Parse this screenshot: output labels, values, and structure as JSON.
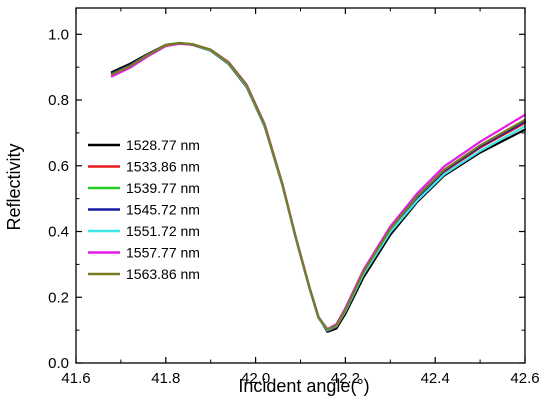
{
  "chart_data": {
    "type": "line",
    "title": "",
    "xlabel": "Incident angle(°)",
    "ylabel": "Reflectivity",
    "xlim": [
      41.6,
      42.6
    ],
    "ylim": [
      0.0,
      1.08
    ],
    "xticks": [
      "41.6",
      "41.8",
      "42.0",
      "42.2",
      "42.4",
      "42.6"
    ],
    "yticks": [
      "0.0",
      "0.2",
      "0.4",
      "0.6",
      "0.8",
      "1.0"
    ],
    "grid": false,
    "legend_position": "lower-left",
    "series": [
      {
        "name": "1528.77 nm",
        "color": "#000000",
        "points": [
          [
            41.68,
            0.885
          ],
          [
            41.72,
            0.91
          ],
          [
            41.76,
            0.94
          ],
          [
            41.8,
            0.968
          ],
          [
            41.83,
            0.972
          ],
          [
            41.86,
            0.968
          ],
          [
            41.9,
            0.95
          ],
          [
            41.94,
            0.91
          ],
          [
            41.98,
            0.84
          ],
          [
            42.02,
            0.72
          ],
          [
            42.06,
            0.54
          ],
          [
            42.09,
            0.38
          ],
          [
            42.12,
            0.23
          ],
          [
            42.14,
            0.14
          ],
          [
            42.16,
            0.095
          ],
          [
            42.18,
            0.105
          ],
          [
            42.2,
            0.15
          ],
          [
            42.24,
            0.26
          ],
          [
            42.3,
            0.39
          ],
          [
            42.36,
            0.49
          ],
          [
            42.42,
            0.57
          ],
          [
            42.5,
            0.64
          ],
          [
            42.6,
            0.71
          ]
        ]
      },
      {
        "name": "1533.86 nm",
        "color": "#e8191c",
        "points": [
          [
            41.68,
            0.88
          ],
          [
            41.72,
            0.905
          ],
          [
            41.76,
            0.938
          ],
          [
            41.8,
            0.968
          ],
          [
            41.83,
            0.973
          ],
          [
            41.86,
            0.969
          ],
          [
            41.9,
            0.952
          ],
          [
            41.94,
            0.912
          ],
          [
            41.98,
            0.842
          ],
          [
            42.02,
            0.722
          ],
          [
            42.06,
            0.54
          ],
          [
            42.09,
            0.378
          ],
          [
            42.12,
            0.228
          ],
          [
            42.14,
            0.138
          ],
          [
            42.16,
            0.098
          ],
          [
            42.18,
            0.11
          ],
          [
            42.2,
            0.158
          ],
          [
            42.24,
            0.272
          ],
          [
            42.3,
            0.402
          ],
          [
            42.36,
            0.5
          ],
          [
            42.42,
            0.582
          ],
          [
            42.5,
            0.655
          ],
          [
            42.6,
            0.73
          ]
        ]
      },
      {
        "name": "1539.77 nm",
        "color": "#22cc22",
        "points": [
          [
            41.68,
            0.88
          ],
          [
            41.72,
            0.905
          ],
          [
            41.76,
            0.938
          ],
          [
            41.8,
            0.968
          ],
          [
            41.83,
            0.974
          ],
          [
            41.86,
            0.97
          ],
          [
            41.9,
            0.953
          ],
          [
            41.94,
            0.914
          ],
          [
            41.98,
            0.844
          ],
          [
            42.02,
            0.724
          ],
          [
            42.06,
            0.542
          ],
          [
            42.09,
            0.378
          ],
          [
            42.12,
            0.228
          ],
          [
            42.14,
            0.137
          ],
          [
            42.16,
            0.098
          ],
          [
            42.18,
            0.112
          ],
          [
            42.2,
            0.16
          ],
          [
            42.24,
            0.275
          ],
          [
            42.3,
            0.405
          ],
          [
            42.36,
            0.504
          ],
          [
            42.42,
            0.586
          ],
          [
            42.5,
            0.66
          ],
          [
            42.6,
            0.735
          ]
        ]
      },
      {
        "name": "1545.72 nm",
        "color": "#1a1aa8",
        "points": [
          [
            41.68,
            0.88
          ],
          [
            41.72,
            0.905
          ],
          [
            41.76,
            0.938
          ],
          [
            41.8,
            0.967
          ],
          [
            41.83,
            0.973
          ],
          [
            41.86,
            0.969
          ],
          [
            41.9,
            0.952
          ],
          [
            41.94,
            0.913
          ],
          [
            41.98,
            0.843
          ],
          [
            42.02,
            0.723
          ],
          [
            42.06,
            0.541
          ],
          [
            42.09,
            0.377
          ],
          [
            42.12,
            0.227
          ],
          [
            42.14,
            0.137
          ],
          [
            42.16,
            0.099
          ],
          [
            42.18,
            0.112
          ],
          [
            42.2,
            0.16
          ],
          [
            42.24,
            0.274
          ],
          [
            42.3,
            0.404
          ],
          [
            42.36,
            0.503
          ],
          [
            42.42,
            0.585
          ],
          [
            42.5,
            0.658
          ],
          [
            42.6,
            0.735
          ]
        ]
      },
      {
        "name": "1551.72 nm",
        "color": "#3ee6e6",
        "points": [
          [
            41.68,
            0.878
          ],
          [
            41.72,
            0.903
          ],
          [
            41.76,
            0.937
          ],
          [
            41.8,
            0.966
          ],
          [
            41.83,
            0.972
          ],
          [
            41.86,
            0.969
          ],
          [
            41.9,
            0.951
          ],
          [
            41.94,
            0.912
          ],
          [
            41.98,
            0.842
          ],
          [
            42.02,
            0.722
          ],
          [
            42.06,
            0.54
          ],
          [
            42.09,
            0.376
          ],
          [
            42.12,
            0.226
          ],
          [
            42.14,
            0.137
          ],
          [
            42.16,
            0.1
          ],
          [
            42.18,
            0.113
          ],
          [
            42.2,
            0.158
          ],
          [
            42.24,
            0.27
          ],
          [
            42.3,
            0.398
          ],
          [
            42.36,
            0.494
          ],
          [
            42.42,
            0.574
          ],
          [
            42.5,
            0.645
          ],
          [
            42.6,
            0.72
          ]
        ]
      },
      {
        "name": "1557.77 nm",
        "color": "#e619e6",
        "points": [
          [
            41.68,
            0.872
          ],
          [
            41.72,
            0.898
          ],
          [
            41.76,
            0.933
          ],
          [
            41.8,
            0.964
          ],
          [
            41.83,
            0.971
          ],
          [
            41.86,
            0.969
          ],
          [
            41.9,
            0.953
          ],
          [
            41.94,
            0.915
          ],
          [
            41.98,
            0.847
          ],
          [
            42.02,
            0.727
          ],
          [
            42.06,
            0.545
          ],
          [
            42.09,
            0.38
          ],
          [
            42.12,
            0.23
          ],
          [
            42.14,
            0.14
          ],
          [
            42.16,
            0.103
          ],
          [
            42.18,
            0.118
          ],
          [
            42.2,
            0.167
          ],
          [
            42.24,
            0.283
          ],
          [
            42.3,
            0.415
          ],
          [
            42.36,
            0.516
          ],
          [
            42.42,
            0.598
          ],
          [
            42.5,
            0.673
          ],
          [
            42.6,
            0.755
          ]
        ]
      },
      {
        "name": "1563.86 nm",
        "color": "#7a7a1e",
        "points": [
          [
            41.68,
            0.878
          ],
          [
            41.72,
            0.903
          ],
          [
            41.76,
            0.937
          ],
          [
            41.8,
            0.967
          ],
          [
            41.83,
            0.973
          ],
          [
            41.86,
            0.97
          ],
          [
            41.9,
            0.953
          ],
          [
            41.94,
            0.914
          ],
          [
            41.98,
            0.845
          ],
          [
            42.02,
            0.725
          ],
          [
            42.06,
            0.543
          ],
          [
            42.09,
            0.379
          ],
          [
            42.12,
            0.229
          ],
          [
            42.14,
            0.139
          ],
          [
            42.16,
            0.102
          ],
          [
            42.18,
            0.115
          ],
          [
            42.2,
            0.162
          ],
          [
            42.24,
            0.277
          ],
          [
            42.3,
            0.408
          ],
          [
            42.36,
            0.507
          ],
          [
            42.42,
            0.588
          ],
          [
            42.5,
            0.662
          ],
          [
            42.6,
            0.74
          ]
        ]
      }
    ]
  }
}
